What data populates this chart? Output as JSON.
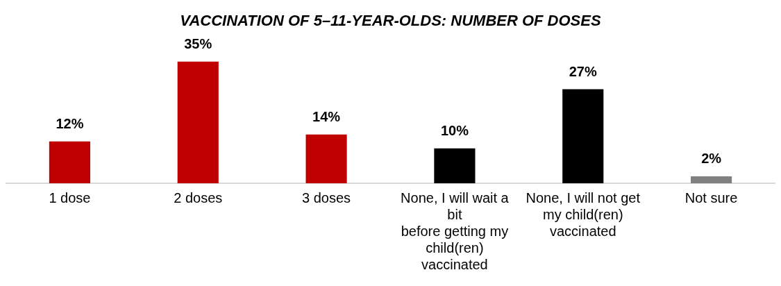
{
  "chart_data": {
    "type": "bar",
    "title": "VACCINATION OF 5–11-YEAR-OLDS: NUMBER OF DOSES",
    "categories": [
      "1 dose",
      "2 doses",
      "3 doses",
      "None, I will wait a bit\nbefore getting my child(ren) vaccinated",
      "None, I will not get\nmy child(ren) vaccinated",
      "Not sure"
    ],
    "values": [
      12,
      35,
      14,
      10,
      27,
      2
    ],
    "value_labels": [
      "12%",
      "35%",
      "14%",
      "10%",
      "27%",
      "2%"
    ],
    "colors": [
      "#c00000",
      "#c00000",
      "#c00000",
      "#000000",
      "#000000",
      "#808080"
    ],
    "grid": false,
    "legend": false
  }
}
